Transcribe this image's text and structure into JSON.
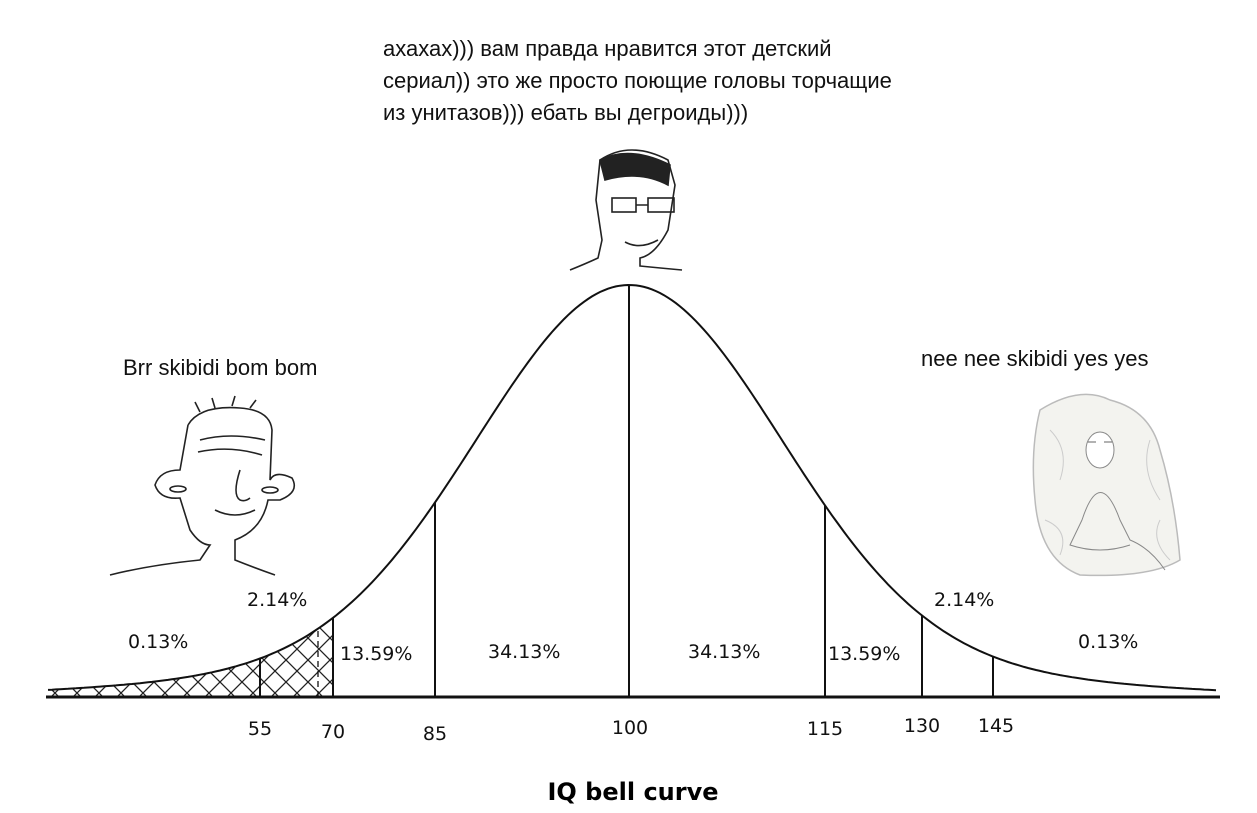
{
  "captions": {
    "top": [
      "ахахах))) вам правда нравится этот детский",
      "сериал)) это же просто поющие головы торчащие",
      "из унитазов))) ебать вы дегроиды)))"
    ],
    "left": "Brr skibidi bom bom",
    "right": "nee nee skibidi yes yes"
  },
  "regions": [
    "0.13%",
    "2.14%",
    "13.59%",
    "34.13%",
    "34.13%",
    "13.59%",
    "2.14%",
    "0.13%"
  ],
  "ticks": [
    "55",
    "70",
    "85",
    "100",
    "115",
    "130",
    "145"
  ],
  "title": "IQ bell curve"
}
